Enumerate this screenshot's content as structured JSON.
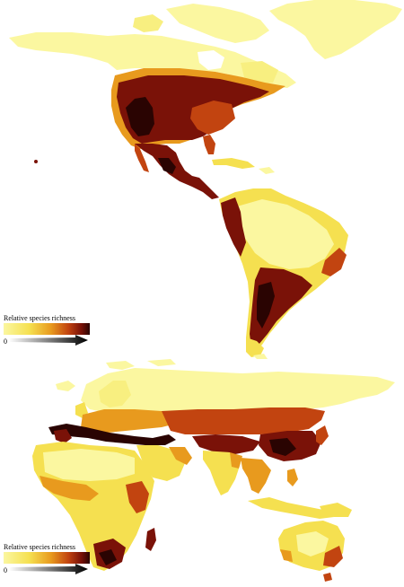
{
  "legend_upper": {
    "title": "Relative species richness",
    "min_label": "0"
  },
  "legend_lower": {
    "title": "Relative species richness",
    "min_label": "0"
  },
  "colors": {
    "low": "#fbf7a0",
    "low_mid": "#f5e050",
    "mid": "#e89a1e",
    "mid_high": "#c24410",
    "high": "#7a1208",
    "max": "#2a0402",
    "arrow": "#000000"
  }
}
